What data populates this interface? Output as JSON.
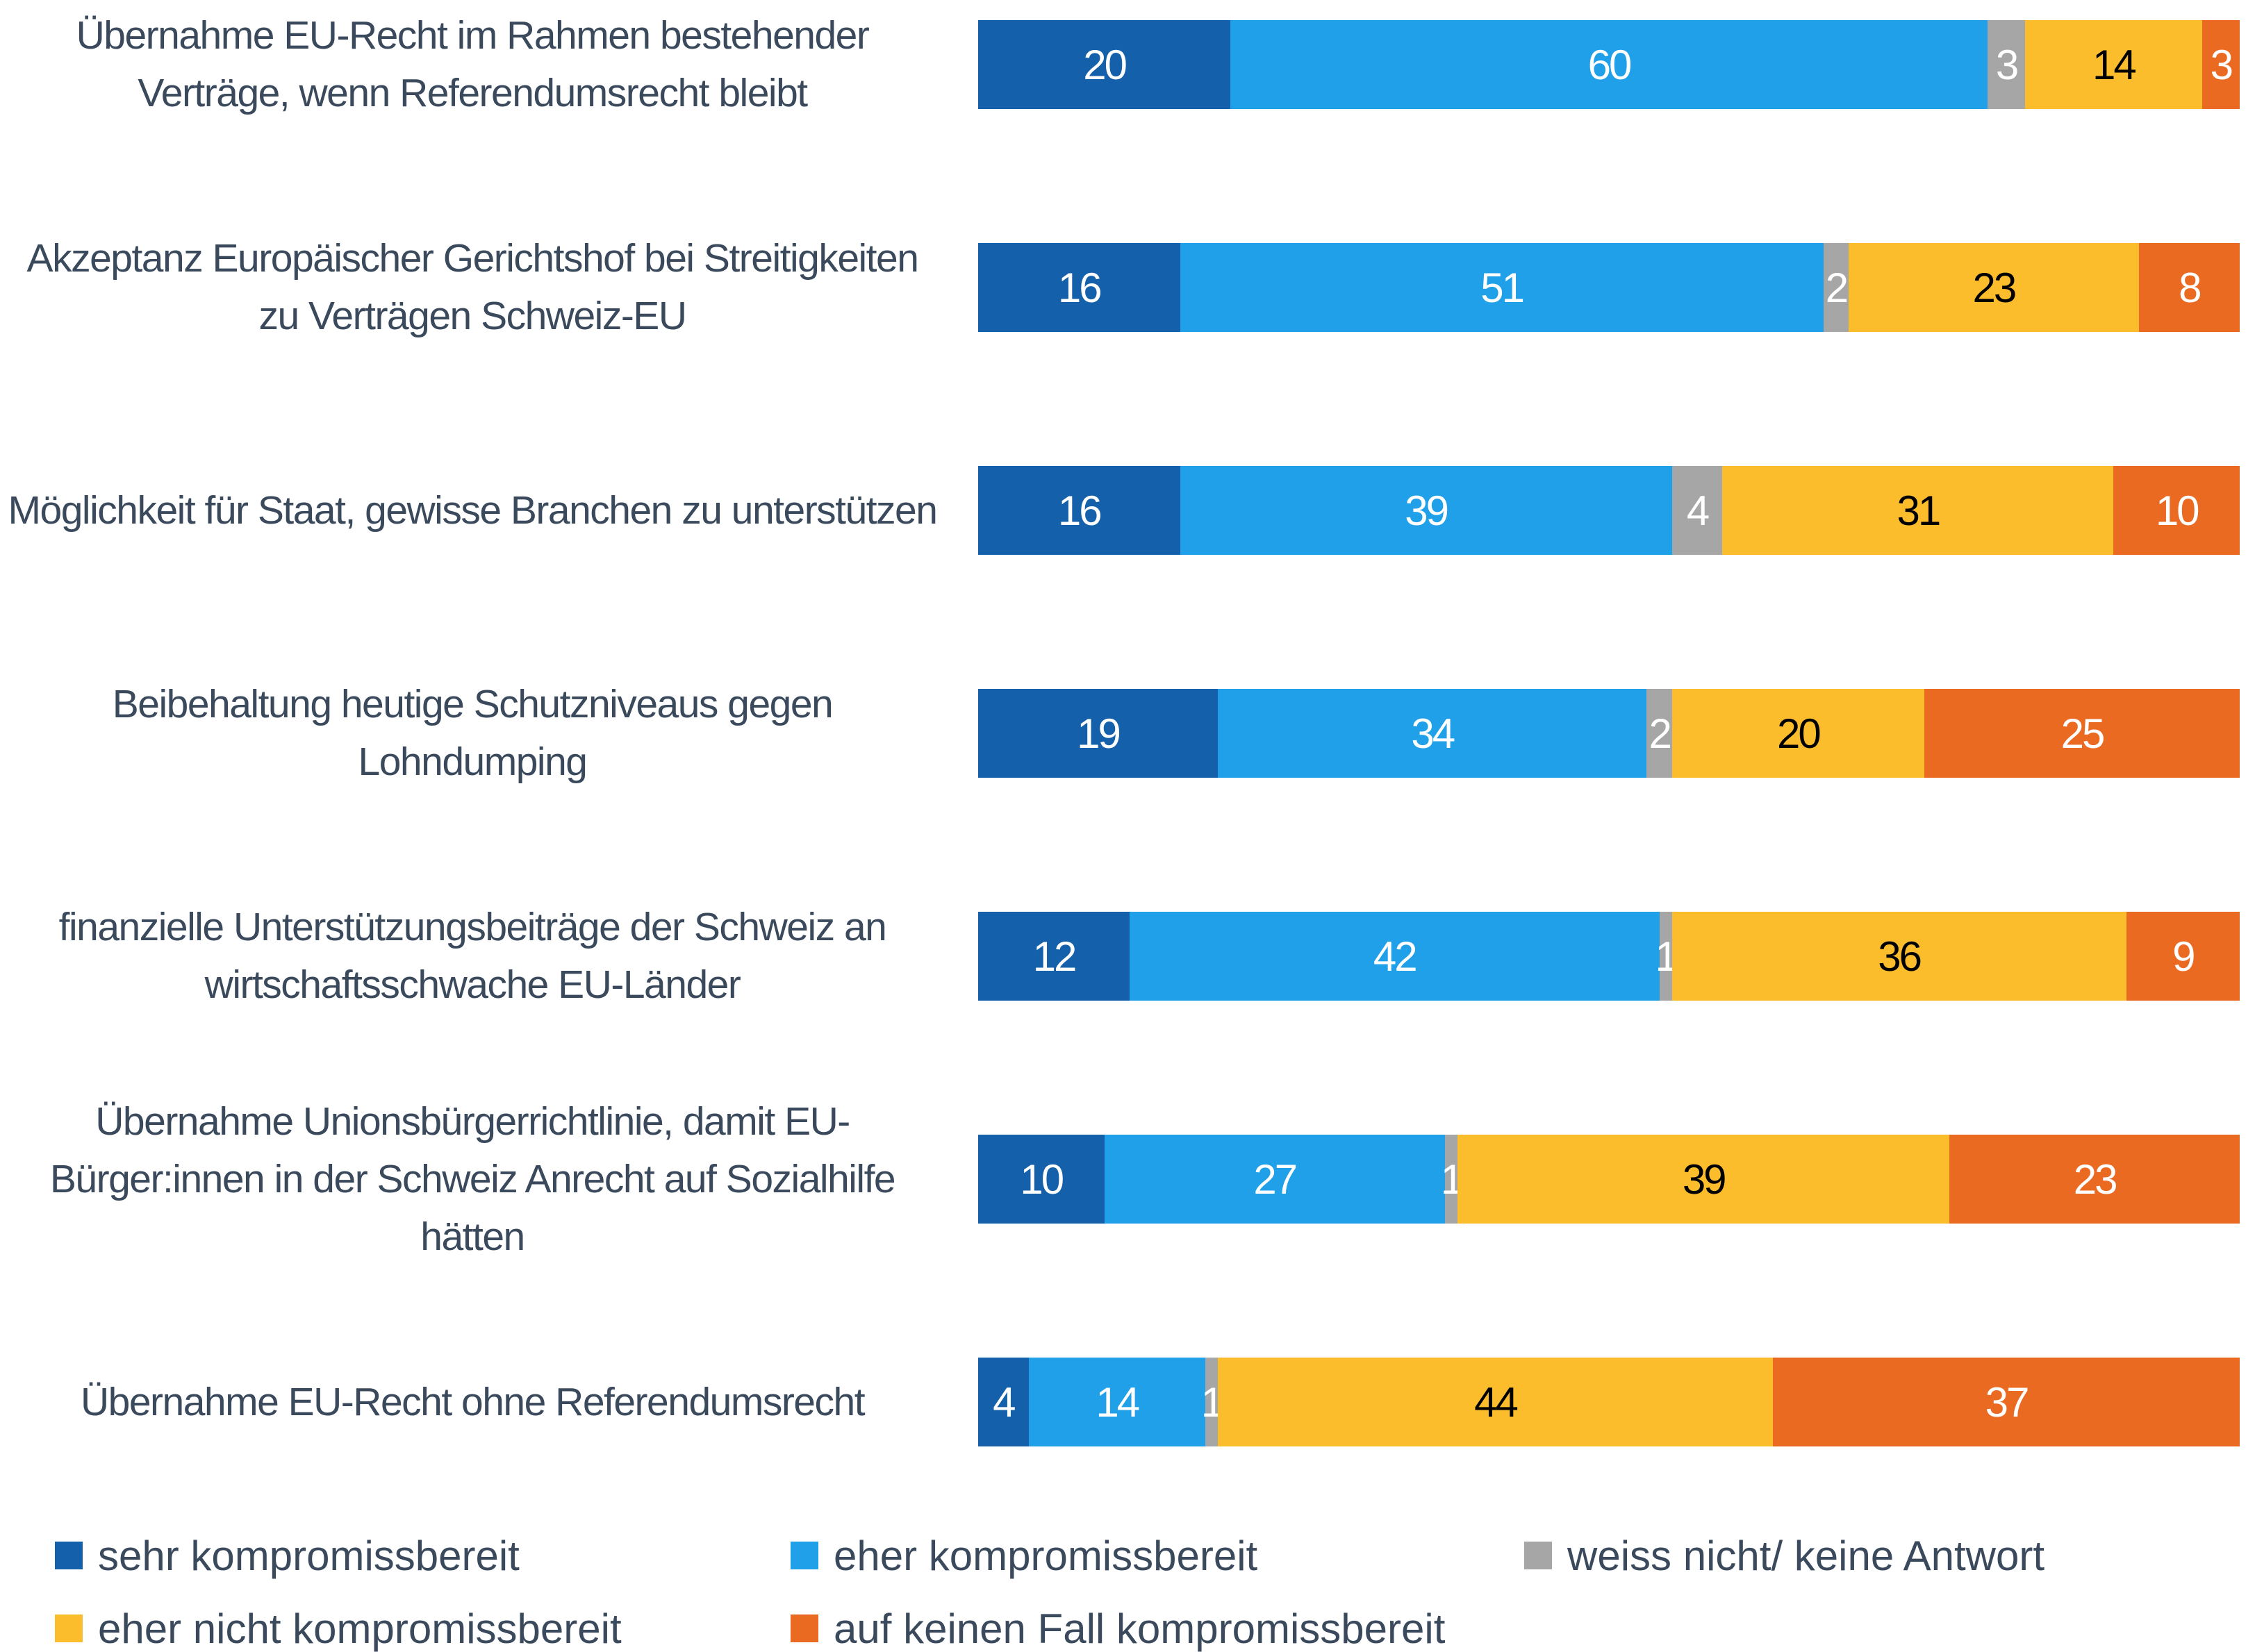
{
  "chart_data": {
    "type": "stacked_barh",
    "categories": [
      "Übernahme EU-Recht im Rahmen bestehender Verträge, wenn Referendumsrecht bleibt",
      "Akzeptanz Europäischer Gerichtshof bei Streitigkeiten zu Verträgen Schweiz-EU",
      "Möglichkeit für Staat, gewisse Branchen zu unterstützen",
      "Beibehaltung heutige Schutzniveaus gegen Lohndumping",
      "finanzielle Unterstützungsbeiträge der Schweiz an wirtschaftsschwache EU-Länder",
      "Übernahme Unionsbürgerrichtlinie, damit EU-Bürger:innen in der Schweiz Anrecht auf Sozialhilfe hätten",
      "Übernahme EU-Recht ohne Referendumsrecht"
    ],
    "series": [
      {
        "name": "sehr kompromissbereit",
        "color": "#1460aa",
        "values": [
          20,
          16,
          16,
          19,
          12,
          10,
          4
        ]
      },
      {
        "name": "eher kompromissbereit",
        "color": "#1fa0e8",
        "values": [
          60,
          51,
          39,
          34,
          42,
          27,
          14
        ]
      },
      {
        "name": "weiss nicht/ keine Antwort",
        "color": "#a6a6a6",
        "values": [
          3,
          2,
          4,
          2,
          1,
          1,
          1
        ]
      },
      {
        "name": "eher nicht kompromissbereit",
        "color": "#fbbd2c",
        "values": [
          14,
          23,
          31,
          20,
          36,
          39,
          44
        ]
      },
      {
        "name": "auf keinen Fall kompromissbereit",
        "color": "#ea6a22",
        "values": [
          3,
          8,
          10,
          25,
          9,
          23,
          37
        ]
      }
    ],
    "xlim": [
      0,
      100
    ]
  }
}
